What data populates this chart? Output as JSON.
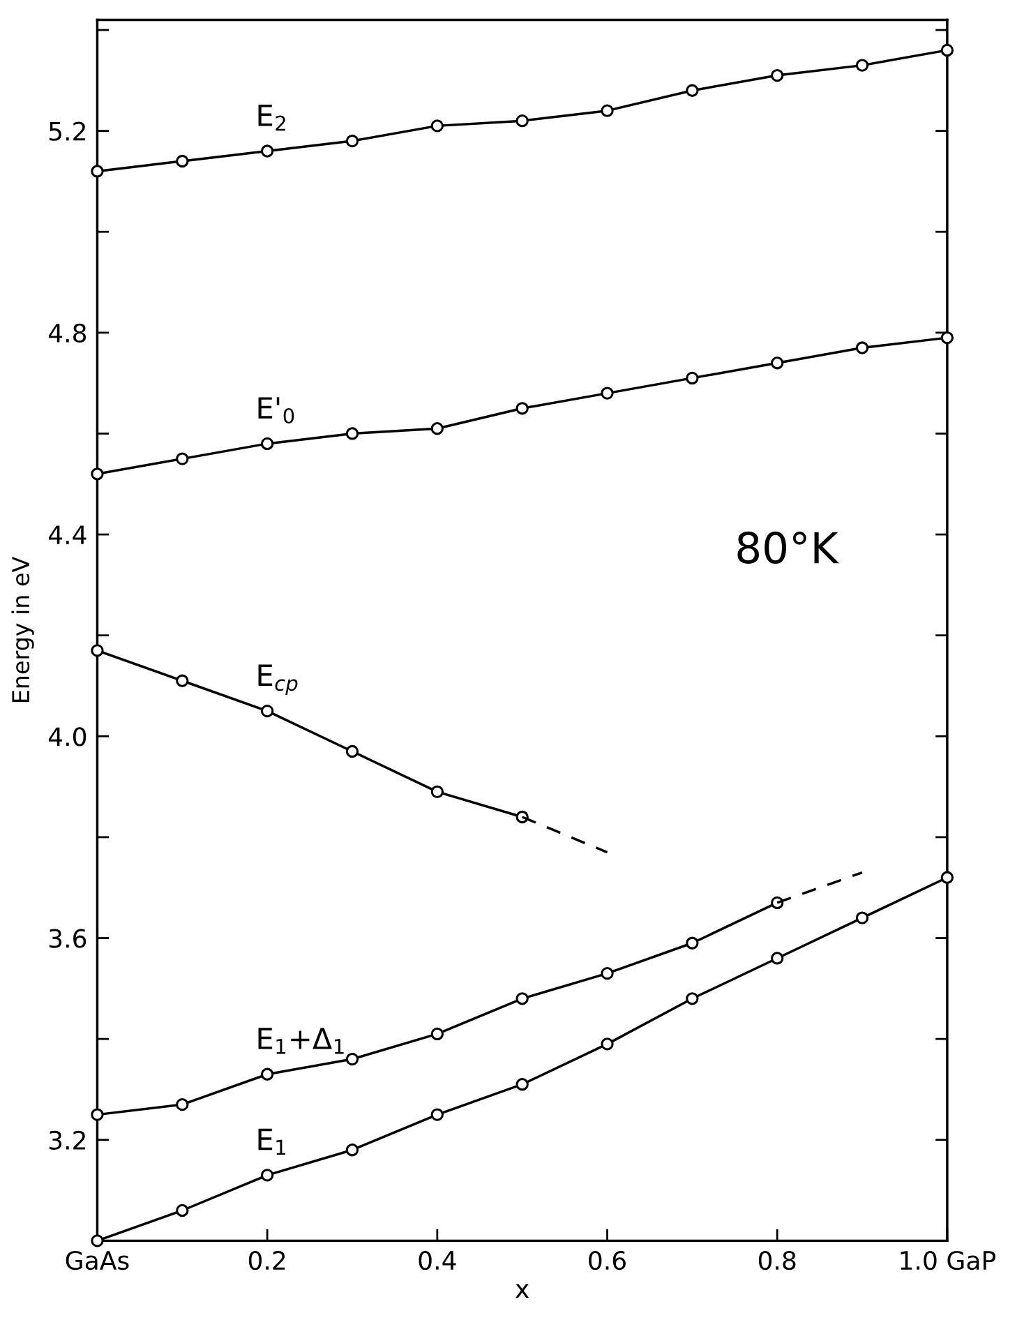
{
  "chart_data": {
    "type": "line",
    "xlabel": "x",
    "ylabel": "Energy in eV",
    "xlim": [
      0,
      1.0
    ],
    "ylim": [
      3.0,
      5.42
    ],
    "xticks": [
      {
        "value": 0,
        "label": "GaAs"
      },
      0.2,
      0.4,
      0.6,
      0.8,
      {
        "value": 1.0,
        "label": "1.0 GaP"
      }
    ],
    "yticks": [
      3.2,
      3.6,
      {
        "value": 4.0,
        "label": "4.0"
      },
      4.4,
      4.8,
      5.2
    ],
    "grid": false,
    "legend": false,
    "marker": "circle",
    "line_style": "solid",
    "series": [
      {
        "name": "E$_{2}$",
        "color": "#000000",
        "x": [
          0,
          0.1,
          0.2,
          0.3,
          0.4,
          0.5,
          0.6,
          0.7,
          0.8,
          0.9,
          1.0
        ],
        "values": [
          5.12,
          5.14,
          5.16,
          5.18,
          5.21,
          5.22,
          5.24,
          5.28,
          5.31,
          5.33,
          5.36
        ]
      },
      {
        "name": "E'$_{0}$",
        "color": "#000000",
        "x": [
          0,
          0.1,
          0.2,
          0.3,
          0.4,
          0.5,
          0.6,
          0.7,
          0.8,
          0.9,
          1.0
        ],
        "values": [
          4.52,
          4.55,
          4.58,
          4.6,
          4.61,
          4.65,
          4.68,
          4.71,
          4.74,
          4.77,
          4.79
        ]
      },
      {
        "name": "E$_{cp}$",
        "color": "#000000",
        "x": [
          0,
          0.1,
          0.2,
          0.3,
          0.4,
          0.5
        ],
        "values": [
          4.17,
          4.11,
          4.05,
          3.97,
          3.89,
          3.84
        ]
      },
      {
        "color": "#000000",
        "x": [
          0.5,
          0.6
        ],
        "values": [
          3.84,
          3.77
        ],
        "marker": "none",
        "line_style": "dashed"
      },
      {
        "name": "E$_{1}$+Δ$_{1}$",
        "color": "#000000",
        "x": [
          0,
          0.1,
          0.2,
          0.3,
          0.4,
          0.5,
          0.6,
          0.7,
          0.8
        ],
        "values": [
          3.25,
          3.27,
          3.33,
          3.36,
          3.41,
          3.48,
          3.53,
          3.59,
          3.67
        ]
      },
      {
        "color": "#000000",
        "x": [
          0.8,
          0.9
        ],
        "values": [
          3.67,
          3.73
        ],
        "marker": "none",
        "line_style": "dashed"
      },
      {
        "name": "E$_{1}$",
        "color": "#000000",
        "x": [
          0,
          0.1,
          0.2,
          0.3,
          0.4,
          0.5,
          0.6,
          0.7,
          0.8,
          0.9,
          1.0
        ],
        "values": [
          3.0,
          3.06,
          3.13,
          3.18,
          3.25,
          3.31,
          3.39,
          3.48,
          3.56,
          3.64,
          3.72
        ]
      }
    ],
    "annotations": [
      "80°K"
    ]
  }
}
